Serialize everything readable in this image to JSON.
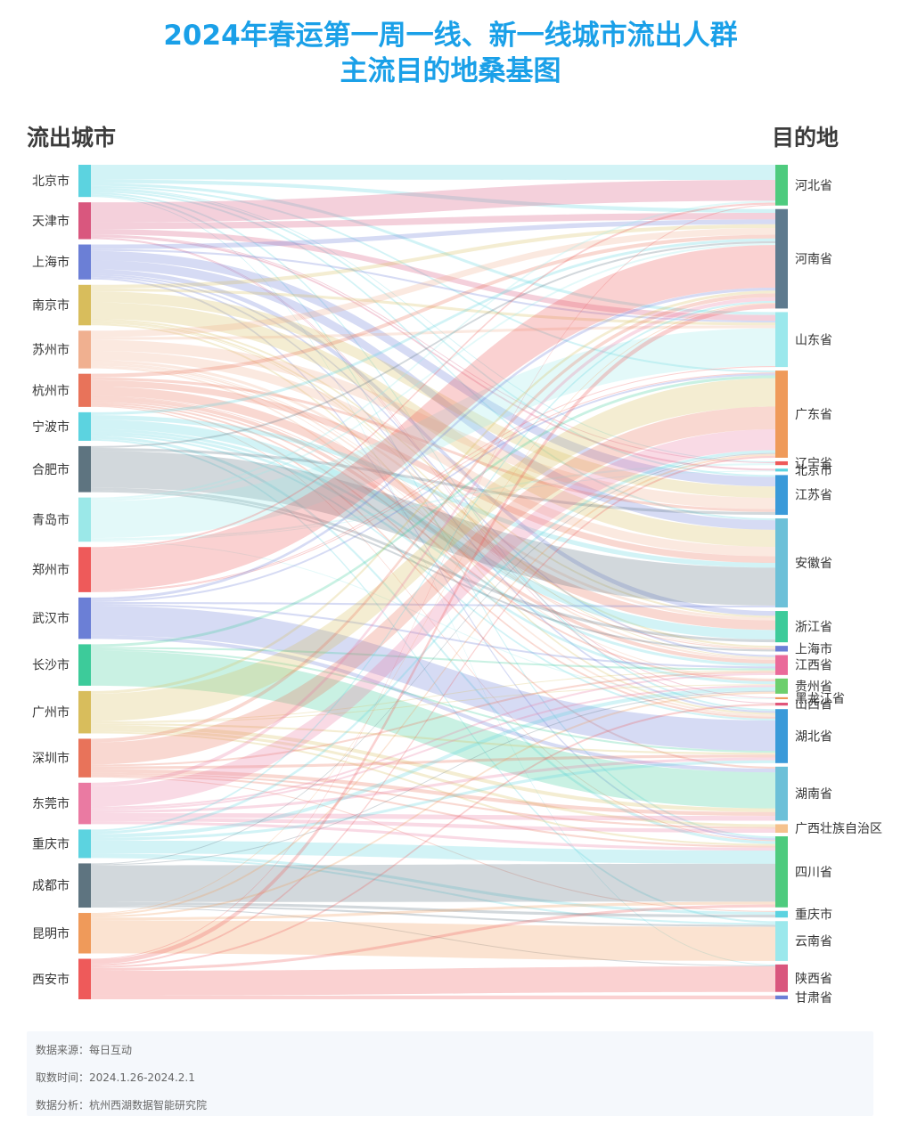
{
  "title_line1": "2024年春运第一周一线、新一线城市流出人群",
  "title_line2": "主流目的地桑基图",
  "left_header": "流出城市",
  "right_header": "目的地",
  "footer": {
    "source": "数据来源：每日互动",
    "period": "取数时间：2024.1.26-2024.2.1",
    "analysis": "数据分析：杭州西湖数据智能研究院"
  },
  "chart_data": {
    "type": "sankey",
    "sources": [
      {
        "name": "北京市",
        "color": "#5cd3e0"
      },
      {
        "name": "天津市",
        "color": "#d9577e"
      },
      {
        "name": "上海市",
        "color": "#6b7fd6"
      },
      {
        "name": "南京市",
        "color": "#d8bd5c"
      },
      {
        "name": "苏州市",
        "color": "#f0b090"
      },
      {
        "name": "杭州市",
        "color": "#e8735a"
      },
      {
        "name": "宁波市",
        "color": "#5cd3e0"
      },
      {
        "name": "合肥市",
        "color": "#5e7480"
      },
      {
        "name": "青岛市",
        "color": "#9be8e8"
      },
      {
        "name": "郑州市",
        "color": "#ee5a5a"
      },
      {
        "name": "武汉市",
        "color": "#6b7fd6"
      },
      {
        "name": "长沙市",
        "color": "#3dcb9a"
      },
      {
        "name": "广州市",
        "color": "#d8bd5c"
      },
      {
        "name": "深圳市",
        "color": "#e8735a"
      },
      {
        "name": "东莞市",
        "color": "#ea7aa2"
      },
      {
        "name": "重庆市",
        "color": "#5cd3e0"
      },
      {
        "name": "成都市",
        "color": "#5e7480"
      },
      {
        "name": "昆明市",
        "color": "#ef9a5a"
      },
      {
        "name": "西安市",
        "color": "#ee5a5a"
      }
    ],
    "targets": [
      {
        "name": "河北省",
        "color": "#4ecb7e"
      },
      {
        "name": "河南省",
        "color": "#5e7a8e"
      },
      {
        "name": "山东省",
        "color": "#9be8ec"
      },
      {
        "name": "广东省",
        "color": "#ef9a5a"
      },
      {
        "name": "辽宁省",
        "color": "#ee5a5a"
      },
      {
        "name": "北京市",
        "color": "#5cd3e0"
      },
      {
        "name": "江苏省",
        "color": "#3a9ad9"
      },
      {
        "name": "安徽省",
        "color": "#6cc0d8"
      },
      {
        "name": "浙江省",
        "color": "#3dcb9a"
      },
      {
        "name": "上海市",
        "color": "#6b7fd6"
      },
      {
        "name": "江西省",
        "color": "#ea6a9a"
      },
      {
        "name": "贵州省",
        "color": "#6dcf6d"
      },
      {
        "name": "黑龙江省",
        "color": "#ef9a5a"
      },
      {
        "name": "山西省",
        "color": "#e0557a"
      },
      {
        "name": "湖北省",
        "color": "#3a9ad9"
      },
      {
        "name": "湖南省",
        "color": "#6cc0d8"
      },
      {
        "name": "广西壮族自治区",
        "color": "#f5c28e"
      },
      {
        "name": "四川省",
        "color": "#4ecb7e"
      },
      {
        "name": "重庆市",
        "color": "#5cd3e0"
      },
      {
        "name": "云南省",
        "color": "#9be8ec"
      },
      {
        "name": "陕西省",
        "color": "#d9577e"
      },
      {
        "name": "甘肃省",
        "color": "#6b7fd6"
      }
    ],
    "links": [
      [
        "北京市",
        "河北省",
        16
      ],
      [
        "北京市",
        "河南省",
        4
      ],
      [
        "北京市",
        "山东省",
        3
      ],
      [
        "北京市",
        "广东省",
        2
      ],
      [
        "北京市",
        "辽宁省",
        1
      ],
      [
        "北京市",
        "江苏省",
        2
      ],
      [
        "北京市",
        "安徽省",
        2
      ],
      [
        "北京市",
        "湖北省",
        2
      ],
      [
        "北京市",
        "四川省",
        2
      ],
      [
        "北京市",
        "陕西省",
        1
      ],
      [
        "天津市",
        "河北省",
        22
      ],
      [
        "天津市",
        "河南省",
        7
      ],
      [
        "天津市",
        "山东省",
        6
      ],
      [
        "天津市",
        "北京市",
        2
      ],
      [
        "天津市",
        "辽宁省",
        1
      ],
      [
        "天津市",
        "黑龙江省",
        1
      ],
      [
        "天津市",
        "山西省",
        1
      ],
      [
        "上海市",
        "江苏省",
        10
      ],
      [
        "上海市",
        "安徽省",
        10
      ],
      [
        "上海市",
        "浙江省",
        5
      ],
      [
        "上海市",
        "河南省",
        5
      ],
      [
        "上海市",
        "江西省",
        2
      ],
      [
        "上海市",
        "山东省",
        2
      ],
      [
        "上海市",
        "湖北省",
        2
      ],
      [
        "上海市",
        "四川省",
        2
      ],
      [
        "南京市",
        "安徽省",
        18
      ],
      [
        "南京市",
        "江苏省",
        12
      ],
      [
        "南京市",
        "河南省",
        4
      ],
      [
        "南京市",
        "山东省",
        3
      ],
      [
        "南京市",
        "浙江省",
        2
      ],
      [
        "南京市",
        "上海市",
        2
      ],
      [
        "南京市",
        "湖北省",
        2
      ],
      [
        "南京市",
        "江西省",
        1
      ],
      [
        "苏州市",
        "江苏省",
        12
      ],
      [
        "苏州市",
        "安徽省",
        10
      ],
      [
        "苏州市",
        "河南省",
        7
      ],
      [
        "苏州市",
        "山东省",
        3
      ],
      [
        "苏州市",
        "浙江省",
        3
      ],
      [
        "苏州市",
        "湖北省",
        2
      ],
      [
        "苏州市",
        "江西省",
        2
      ],
      [
        "苏州市",
        "上海市",
        1
      ],
      [
        "苏州市",
        "贵州省",
        1
      ],
      [
        "杭州市",
        "浙江省",
        10
      ],
      [
        "杭州市",
        "安徽省",
        7
      ],
      [
        "杭州市",
        "江西省",
        4
      ],
      [
        "杭州市",
        "江苏省",
        3
      ],
      [
        "杭州市",
        "河南省",
        4
      ],
      [
        "杭州市",
        "湖北省",
        2
      ],
      [
        "杭州市",
        "上海市",
        1
      ],
      [
        "杭州市",
        "湖南省",
        2
      ],
      [
        "杭州市",
        "贵州省",
        2
      ],
      [
        "杭州市",
        "四川省",
        1
      ],
      [
        "宁波市",
        "浙江省",
        10
      ],
      [
        "宁波市",
        "安徽省",
        5
      ],
      [
        "宁波市",
        "江西省",
        3
      ],
      [
        "宁波市",
        "河南省",
        3
      ],
      [
        "宁波市",
        "湖北省",
        2
      ],
      [
        "宁波市",
        "贵州省",
        3
      ],
      [
        "宁波市",
        "四川省",
        3
      ],
      [
        "宁波市",
        "云南省",
        2
      ],
      [
        "合肥市",
        "安徽省",
        40
      ],
      [
        "合肥市",
        "江苏省",
        3
      ],
      [
        "合肥市",
        "上海市",
        2
      ],
      [
        "合肥市",
        "浙江省",
        3
      ],
      [
        "合肥市",
        "河南省",
        2
      ],
      [
        "青岛市",
        "山东省",
        40
      ],
      [
        "青岛市",
        "河南省",
        2
      ],
      [
        "青岛市",
        "黑龙江省",
        1
      ],
      [
        "青岛市",
        "辽宁省",
        2
      ],
      [
        "青岛市",
        "河北省",
        2
      ],
      [
        "青岛市",
        "北京市",
        1
      ],
      [
        "郑州市",
        "河南省",
        45
      ],
      [
        "郑州市",
        "河北省",
        2
      ],
      [
        "郑州市",
        "山东省",
        1
      ],
      [
        "郑州市",
        "广东省",
        1
      ],
      [
        "武汉市",
        "湖北省",
        32
      ],
      [
        "武汉市",
        "河南省",
        3
      ],
      [
        "武汉市",
        "湖南省",
        4
      ],
      [
        "武汉市",
        "广东省",
        2
      ],
      [
        "武汉市",
        "江西省",
        2
      ],
      [
        "武汉市",
        "安徽省",
        2
      ],
      [
        "长沙市",
        "湖南省",
        38
      ],
      [
        "长沙市",
        "广东省",
        3
      ],
      [
        "长沙市",
        "湖北省",
        2
      ],
      [
        "长沙市",
        "江西省",
        2
      ],
      [
        "广州市",
        "广东省",
        30
      ],
      [
        "广州市",
        "广西壮族自治区",
        3
      ],
      [
        "广州市",
        "湖南省",
        4
      ],
      [
        "广州市",
        "河南省",
        3
      ],
      [
        "广州市",
        "湖北省",
        2
      ],
      [
        "广州市",
        "四川省",
        2
      ],
      [
        "广州市",
        "江西省",
        1
      ],
      [
        "广州市",
        "贵州省",
        1
      ],
      [
        "深圳市",
        "广东省",
        24
      ],
      [
        "深圳市",
        "湖南省",
        4
      ],
      [
        "深圳市",
        "河南省",
        4
      ],
      [
        "深圳市",
        "湖北省",
        3
      ],
      [
        "深圳市",
        "江西省",
        2
      ],
      [
        "深圳市",
        "广西壮族自治区",
        2
      ],
      [
        "深圳市",
        "四川省",
        2
      ],
      [
        "深圳市",
        "重庆市",
        1
      ],
      [
        "东莞市",
        "广东省",
        22
      ],
      [
        "东莞市",
        "湖南省",
        5
      ],
      [
        "东莞市",
        "河南省",
        4
      ],
      [
        "东莞市",
        "广西壮族自治区",
        4
      ],
      [
        "东莞市",
        "湖北省",
        3
      ],
      [
        "东莞市",
        "四川省",
        3
      ],
      [
        "东莞市",
        "江西省",
        2
      ],
      [
        "东莞市",
        "贵州省",
        2
      ],
      [
        "重庆市",
        "四川省",
        14
      ],
      [
        "重庆市",
        "重庆市",
        3
      ],
      [
        "重庆市",
        "贵州省",
        4
      ],
      [
        "重庆市",
        "广东省",
        3
      ],
      [
        "重庆市",
        "湖北省",
        3
      ],
      [
        "重庆市",
        "云南省",
        2
      ],
      [
        "重庆市",
        "河南省",
        2
      ],
      [
        "成都市",
        "四川省",
        40
      ],
      [
        "成都市",
        "重庆市",
        3
      ],
      [
        "成都市",
        "云南省",
        2
      ],
      [
        "成都市",
        "贵州省",
        1
      ],
      [
        "成都市",
        "陕西省",
        1
      ],
      [
        "成都市",
        "广东省",
        1
      ],
      [
        "昆明市",
        "云南省",
        36
      ],
      [
        "昆明市",
        "四川省",
        3
      ],
      [
        "昆明市",
        "广东省",
        2
      ],
      [
        "昆明市",
        "贵州省",
        2
      ],
      [
        "昆明市",
        "河南省",
        1
      ],
      [
        "西安市",
        "陕西省",
        27
      ],
      [
        "西安市",
        "甘肃省",
        4
      ],
      [
        "西安市",
        "河南省",
        5
      ],
      [
        "西安市",
        "四川省",
        3
      ],
      [
        "西安市",
        "山西省",
        2
      ],
      [
        "西安市",
        "广东省",
        2
      ],
      [
        "西安市",
        "河北省",
        1
      ]
    ]
  }
}
